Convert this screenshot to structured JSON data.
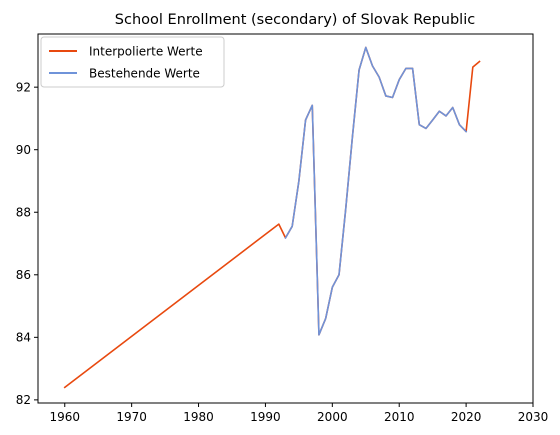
{
  "chart_data": {
    "type": "line",
    "title": "School Enrollment (secondary) of Slovak Republic",
    "xlabel": "",
    "ylabel": "",
    "xlim": [
      1956,
      2030
    ],
    "ylim": [
      81.9,
      93.7
    ],
    "xticks": [
      1960,
      1970,
      1980,
      1990,
      2000,
      2010,
      2020,
      2030
    ],
    "yticks": [
      82,
      84,
      86,
      88,
      90,
      92
    ],
    "grid": false,
    "legend_position": "top-left",
    "series": [
      {
        "name": "Interpolierte Werte",
        "color": "#e8490f",
        "x": [
          1960,
          1992,
          1993,
          1994,
          1995,
          1996,
          1997,
          1998,
          1999,
          2000,
          2001,
          2002,
          2003,
          2004,
          2005,
          2006,
          2007,
          2008,
          2009,
          2010,
          2011,
          2012,
          2013,
          2014,
          2015,
          2016,
          2017,
          2018,
          2019,
          2020,
          2021,
          2022
        ],
        "y": [
          82.4,
          87.62,
          87.18,
          87.55,
          89.0,
          90.95,
          91.42,
          84.08,
          84.6,
          85.6,
          86.0,
          88.1,
          90.4,
          92.55,
          93.27,
          92.68,
          92.32,
          91.72,
          91.67,
          92.24,
          92.6,
          92.6,
          90.8,
          90.68,
          90.95,
          91.23,
          91.08,
          91.35,
          90.8,
          90.58,
          92.64,
          92.82
        ]
      },
      {
        "name": "Bestehende Werte",
        "color": "#6f93d9",
        "x": [
          1993,
          1994,
          1995,
          1996,
          1997,
          1998,
          1999,
          2000,
          2001,
          2002,
          2003,
          2004,
          2005,
          2006,
          2007,
          2008,
          2009,
          2010,
          2011,
          2012,
          2013,
          2014,
          2015,
          2016,
          2017,
          2018,
          2019,
          2020
        ],
        "y": [
          87.18,
          87.55,
          89.0,
          90.95,
          91.42,
          84.08,
          84.6,
          85.6,
          86.0,
          88.1,
          90.4,
          92.55,
          93.27,
          92.68,
          92.32,
          91.72,
          91.67,
          92.24,
          92.6,
          92.6,
          90.8,
          90.68,
          90.95,
          91.23,
          91.08,
          91.35,
          90.8,
          90.58
        ]
      }
    ]
  }
}
